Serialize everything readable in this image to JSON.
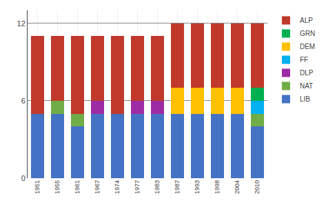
{
  "chart_data": {
    "type": "bar",
    "stacked": true,
    "categories": [
      "1951",
      "1955",
      "1961",
      "1967",
      "1974",
      "1977",
      "1983",
      "1987",
      "1993",
      "1998",
      "2004",
      "2010"
    ],
    "series": [
      {
        "name": "LIB",
        "color": "#4472c4",
        "values": [
          5,
          5,
          4,
          5,
          5,
          5,
          5,
          5,
          5,
          5,
          5,
          4
        ]
      },
      {
        "name": "NAT",
        "color": "#70ad47",
        "values": [
          0,
          1,
          1,
          0,
          0,
          0,
          0,
          0,
          0,
          0,
          0,
          1
        ]
      },
      {
        "name": "DLP",
        "color": "#9e2ba4",
        "values": [
          0,
          0,
          0,
          1,
          0,
          1,
          1,
          0,
          0,
          0,
          0,
          0
        ]
      },
      {
        "name": "FF",
        "color": "#00b0f0",
        "values": [
          0,
          0,
          0,
          0,
          0,
          0,
          0,
          0,
          0,
          0,
          0,
          1
        ]
      },
      {
        "name": "DEM",
        "color": "#ffc000",
        "values": [
          0,
          0,
          0,
          0,
          0,
          0,
          0,
          2,
          2,
          2,
          2,
          0
        ]
      },
      {
        "name": "GRN",
        "color": "#00b050",
        "values": [
          0,
          0,
          0,
          0,
          0,
          0,
          0,
          0,
          0,
          0,
          0,
          1
        ]
      },
      {
        "name": "ALP",
        "color": "#c0392b",
        "values": [
          6,
          5,
          6,
          5,
          6,
          5,
          5,
          5,
          5,
          5,
          5,
          5
        ]
      }
    ],
    "ylim": [
      0,
      13
    ],
    "yticks": [
      0,
      6,
      12
    ],
    "grid": true,
    "legend": "upper right"
  }
}
